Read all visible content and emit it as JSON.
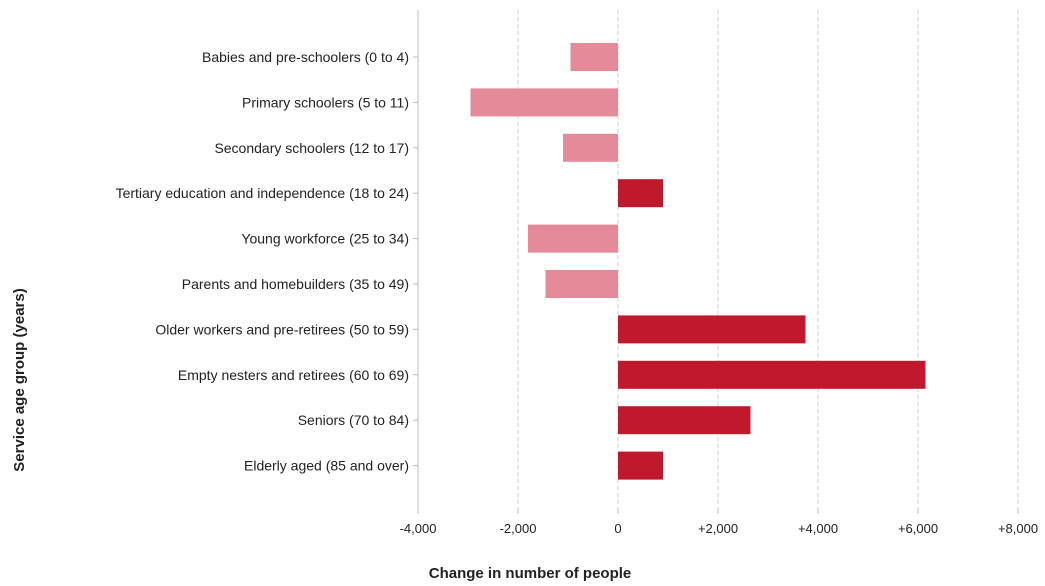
{
  "chart_data": {
    "type": "bar",
    "orientation": "horizontal",
    "categories": [
      "Babies and pre-schoolers (0 to 4)",
      "Primary schoolers (5 to 11)",
      "Secondary schoolers (12 to 17)",
      "Tertiary education and independence (18 to 24)",
      "Young workforce (25 to 34)",
      "Parents and homebuilders (35 to 49)",
      "Older workers and pre-retirees (50 to 59)",
      "Empty nesters and retirees (60 to 69)",
      "Seniors (70 to 84)",
      "Elderly aged (85 and over)"
    ],
    "values": [
      -950,
      -2950,
      -1100,
      900,
      -1800,
      -1450,
      3750,
      6150,
      2650,
      900
    ],
    "xlabel": "Change in number of people",
    "ylabel": "Service age group (years)",
    "xlim": [
      -4000,
      8000
    ],
    "xticks": [
      -4000,
      -2000,
      0,
      2000,
      4000,
      6000,
      8000
    ],
    "xtick_labels": [
      "-4,000",
      "-2,000",
      "0",
      "+2,000",
      "+4,000",
      "+6,000",
      "+8,000"
    ],
    "grid": "vertical dashed",
    "colors": {
      "positive": "#c0192d",
      "negative": "#e58a98"
    }
  }
}
